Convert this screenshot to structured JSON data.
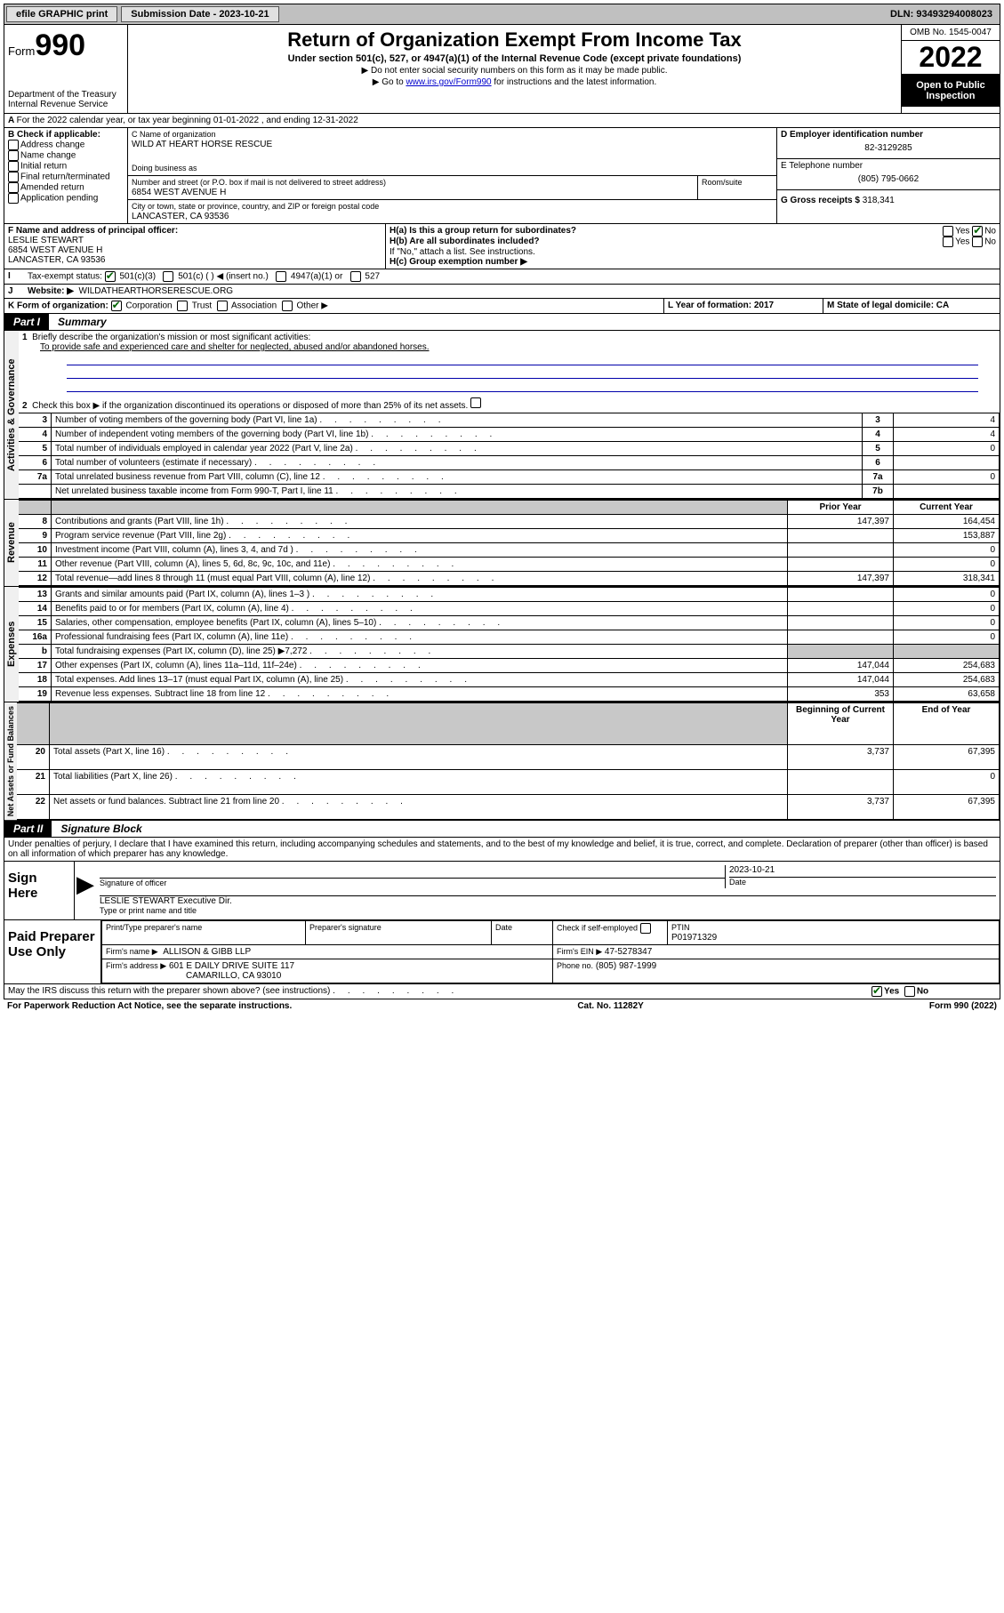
{
  "topbar": {
    "efile": "efile GRAPHIC print",
    "submission_label": "Submission Date - 2023-10-21",
    "dln": "DLN: 93493294008023"
  },
  "header": {
    "form_prefix": "Form",
    "form_num": "990",
    "dept": "Department of the Treasury",
    "irs": "Internal Revenue Service",
    "title": "Return of Organization Exempt From Income Tax",
    "sub": "Under section 501(c), 527, or 4947(a)(1) of the Internal Revenue Code (except private foundations)",
    "line1": "▶ Do not enter social security numbers on this form as it may be made public.",
    "line2_pre": "▶ Go to ",
    "line2_link": "www.irs.gov/Form990",
    "line2_post": " for instructions and the latest information.",
    "omb": "OMB No. 1545-0047",
    "year": "2022",
    "open": "Open to Public Inspection"
  },
  "A": {
    "text": "For the 2022 calendar year, or tax year beginning 01-01-2022     , and ending 12-31-2022"
  },
  "B": {
    "label": "B Check if applicable:",
    "items": [
      "Address change",
      "Name change",
      "Initial return",
      "Final return/terminated",
      "Amended return",
      "Application pending"
    ]
  },
  "C": {
    "name_label": "C Name of organization",
    "name": "WILD AT HEART HORSE RESCUE",
    "dba_label": "Doing business as",
    "addr_label": "Number and street (or P.O. box if mail is not delivered to street address)",
    "room_label": "Room/suite",
    "addr": "6854 WEST AVENUE H",
    "city_label": "City or town, state or province, country, and ZIP or foreign postal code",
    "city": "LANCASTER, CA  93536"
  },
  "D": {
    "label": "D Employer identification number",
    "ein": "82-3129285"
  },
  "E": {
    "label": "E Telephone number",
    "phone": "(805) 795-0662"
  },
  "G": {
    "label": "G Gross receipts $",
    "val": "318,341"
  },
  "F": {
    "label": "F  Name and address of principal officer:",
    "name": "LESLIE STEWART",
    "addr1": "6854 WEST AVENUE H",
    "addr2": "LANCASTER, CA  93536"
  },
  "H": {
    "a": "H(a)  Is this a group return for subordinates?",
    "b": "H(b)  Are all subordinates included?",
    "bnote": "If \"No,\" attach a list. See instructions.",
    "c": "H(c)  Group exemption number ▶",
    "yes": "Yes",
    "no": "No"
  },
  "I": {
    "label": "Tax-exempt status:",
    "opts": [
      "501(c)(3)",
      "501(c) (   ) ◀ (insert no.)",
      "4947(a)(1) or",
      "527"
    ]
  },
  "J": {
    "label": "Website: ▶",
    "val": "WILDATHEARTHORSERESCUE.ORG"
  },
  "K": {
    "label": "K Form of organization:",
    "opts": [
      "Corporation",
      "Trust",
      "Association",
      "Other ▶"
    ]
  },
  "L": {
    "label": "L Year of formation: 2017"
  },
  "M": {
    "label": "M State of legal domicile: CA"
  },
  "part1": {
    "label": "Part I",
    "title": "Summary"
  },
  "summary": {
    "q1": "Briefly describe the organization's mission or most significant activities:",
    "mission": "To provide safe and experienced care and shelter for neglected, abused and/or abandoned horses.",
    "q2": "Check this box ▶          if the organization discontinued its operations or disposed of more than 25% of its net assets.",
    "rows_gov": [
      {
        "n": "3",
        "t": "Number of voting members of the governing body (Part VI, line 1a)",
        "idx": "3",
        "v": "4"
      },
      {
        "n": "4",
        "t": "Number of independent voting members of the governing body (Part VI, line 1b)",
        "idx": "4",
        "v": "4"
      },
      {
        "n": "5",
        "t": "Total number of individuals employed in calendar year 2022 (Part V, line 2a)",
        "idx": "5",
        "v": "0"
      },
      {
        "n": "6",
        "t": "Total number of volunteers (estimate if necessary)",
        "idx": "6",
        "v": ""
      },
      {
        "n": "7a",
        "t": "Total unrelated business revenue from Part VIII, column (C), line 12",
        "idx": "7a",
        "v": "0"
      },
      {
        "n": "",
        "t": "Net unrelated business taxable income from Form 990-T, Part I, line 11",
        "idx": "7b",
        "v": ""
      }
    ],
    "col_prior": "Prior Year",
    "col_current": "Current Year",
    "col_boy": "Beginning of Current Year",
    "col_eoy": "End of Year",
    "rows_rev": [
      {
        "n": "8",
        "t": "Contributions and grants (Part VIII, line 1h)",
        "p": "147,397",
        "c": "164,454"
      },
      {
        "n": "9",
        "t": "Program service revenue (Part VIII, line 2g)",
        "p": "",
        "c": "153,887"
      },
      {
        "n": "10",
        "t": "Investment income (Part VIII, column (A), lines 3, 4, and 7d )",
        "p": "",
        "c": "0"
      },
      {
        "n": "11",
        "t": "Other revenue (Part VIII, column (A), lines 5, 6d, 8c, 9c, 10c, and 11e)",
        "p": "",
        "c": "0"
      },
      {
        "n": "12",
        "t": "Total revenue—add lines 8 through 11 (must equal Part VIII, column (A), line 12)",
        "p": "147,397",
        "c": "318,341"
      }
    ],
    "rows_exp": [
      {
        "n": "13",
        "t": "Grants and similar amounts paid (Part IX, column (A), lines 1–3 )",
        "p": "",
        "c": "0"
      },
      {
        "n": "14",
        "t": "Benefits paid to or for members (Part IX, column (A), line 4)",
        "p": "",
        "c": "0"
      },
      {
        "n": "15",
        "t": "Salaries, other compensation, employee benefits (Part IX, column (A), lines 5–10)",
        "p": "",
        "c": "0"
      },
      {
        "n": "16a",
        "t": "Professional fundraising fees (Part IX, column (A), line 11e)",
        "p": "",
        "c": "0"
      },
      {
        "n": "b",
        "t": "Total fundraising expenses (Part IX, column (D), line 25) ▶7,272",
        "p": "shaded",
        "c": "shaded"
      },
      {
        "n": "17",
        "t": "Other expenses (Part IX, column (A), lines 11a–11d, 11f–24e)",
        "p": "147,044",
        "c": "254,683"
      },
      {
        "n": "18",
        "t": "Total expenses. Add lines 13–17 (must equal Part IX, column (A), line 25)",
        "p": "147,044",
        "c": "254,683"
      },
      {
        "n": "19",
        "t": "Revenue less expenses. Subtract line 18 from line 12",
        "p": "353",
        "c": "63,658"
      }
    ],
    "rows_net": [
      {
        "n": "20",
        "t": "Total assets (Part X, line 16)",
        "p": "3,737",
        "c": "67,395"
      },
      {
        "n": "21",
        "t": "Total liabilities (Part X, line 26)",
        "p": "",
        "c": "0"
      },
      {
        "n": "22",
        "t": "Net assets or fund balances. Subtract line 21 from line 20",
        "p": "3,737",
        "c": "67,395"
      }
    ]
  },
  "sidelabels": {
    "gov": "Activities & Governance",
    "rev": "Revenue",
    "exp": "Expenses",
    "net": "Net Assets or Fund Balances"
  },
  "part2": {
    "label": "Part II",
    "title": "Signature Block"
  },
  "sig": {
    "perjury": "Under penalties of perjury, I declare that I have examined this return, including accompanying schedules and statements, and to the best of my knowledge and belief, it is true, correct, and complete. Declaration of preparer (other than officer) is based on all information of which preparer has any knowledge.",
    "sign_here": "Sign Here",
    "officer_sig": "Signature of officer",
    "date": "Date",
    "date_val": "2023-10-21",
    "officer_name": "LESLIE STEWART  Executive Dir.",
    "type_name": "Type or print name and title",
    "paid": "Paid Preparer Use Only",
    "prep_name_h": "Print/Type preparer's name",
    "prep_sig_h": "Preparer's signature",
    "date_h": "Date",
    "check_if": "Check          if self-employed",
    "ptin_h": "PTIN",
    "ptin": "P01971329",
    "firm_name_l": "Firm's name      ▶",
    "firm_name": "ALLISON & GIBB LLP",
    "firm_ein_l": "Firm's EIN ▶",
    "firm_ein": "47-5278347",
    "firm_addr_l": "Firm's address ▶",
    "firm_addr1": "601 E DAILY DRIVE SUITE 117",
    "firm_addr2": "CAMARILLO, CA  93010",
    "phone_l": "Phone no.",
    "phone": "(805) 987-1999",
    "discuss": "May the IRS discuss this return with the preparer shown above? (see instructions)"
  },
  "footer": {
    "pra": "For Paperwork Reduction Act Notice, see the separate instructions.",
    "cat": "Cat. No. 11282Y",
    "form": "Form 990 (2022)"
  }
}
